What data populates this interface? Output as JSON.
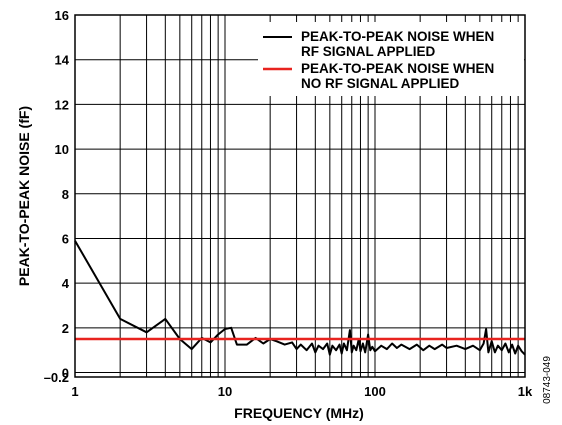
{
  "chart_data": {
    "type": "line",
    "xlabel": "FREQUENCY (MHz)",
    "ylabel": "PEAK-TO-PEAK NOISE (fF)",
    "x_scale": "log",
    "xlim": [
      1,
      1000
    ],
    "ylim": [
      -0.2,
      16
    ],
    "x_ticks": [
      {
        "value": 1,
        "label": "1"
      },
      {
        "value": 10,
        "label": "10"
      },
      {
        "value": 100,
        "label": "100"
      },
      {
        "value": 1000,
        "label": "1k"
      }
    ],
    "y_ticks": [
      {
        "value": 16,
        "label": "16"
      },
      {
        "value": 14,
        "label": "14"
      },
      {
        "value": 12,
        "label": "12"
      },
      {
        "value": 10,
        "label": "10"
      },
      {
        "value": 8,
        "label": "8"
      },
      {
        "value": 6,
        "label": "6"
      },
      {
        "value": 4,
        "label": "4"
      },
      {
        "value": 2,
        "label": "2"
      },
      {
        "value": 0,
        "label": "0"
      },
      {
        "value": -0.2,
        "label": "–0.2"
      }
    ],
    "grid": true,
    "legend_position": "top-right",
    "series": [
      {
        "name": "PEAK-TO-PEAK NOISE WHEN RF SIGNAL APPLIED",
        "legend_lines": [
          "PEAK-TO-PEAK NOISE WHEN",
          "RF SIGNAL APPLIED"
        ],
        "color": "#000000",
        "points": [
          [
            1,
            5.9
          ],
          [
            2,
            2.4
          ],
          [
            3,
            1.8
          ],
          [
            4,
            2.4
          ],
          [
            5,
            1.5
          ],
          [
            6,
            1.05
          ],
          [
            7,
            1.55
          ],
          [
            8,
            1.35
          ],
          [
            9,
            1.7
          ],
          [
            10,
            1.95
          ],
          [
            11,
            2.0
          ],
          [
            12,
            1.25
          ],
          [
            14,
            1.25
          ],
          [
            16,
            1.55
          ],
          [
            18,
            1.3
          ],
          [
            20,
            1.5
          ],
          [
            22,
            1.4
          ],
          [
            25,
            1.25
          ],
          [
            28,
            1.35
          ],
          [
            30,
            1.05
          ],
          [
            32,
            1.25
          ],
          [
            35,
            1.0
          ],
          [
            38,
            1.3
          ],
          [
            40,
            0.9
          ],
          [
            42,
            1.2
          ],
          [
            45,
            1.05
          ],
          [
            48,
            1.3
          ],
          [
            50,
            0.8
          ],
          [
            52,
            1.2
          ],
          [
            55,
            1.0
          ],
          [
            58,
            1.25
          ],
          [
            60,
            0.85
          ],
          [
            62,
            1.3
          ],
          [
            65,
            1.0
          ],
          [
            68,
            1.9
          ],
          [
            70,
            0.9
          ],
          [
            72,
            1.2
          ],
          [
            75,
            1.0
          ],
          [
            78,
            1.5
          ],
          [
            80,
            0.95
          ],
          [
            83,
            1.3
          ],
          [
            86,
            0.9
          ],
          [
            90,
            1.7
          ],
          [
            93,
            1.0
          ],
          [
            96,
            1.15
          ],
          [
            100,
            0.95
          ],
          [
            110,
            1.2
          ],
          [
            120,
            1.05
          ],
          [
            130,
            1.3
          ],
          [
            140,
            1.1
          ],
          [
            150,
            1.25
          ],
          [
            170,
            1.05
          ],
          [
            190,
            1.25
          ],
          [
            210,
            1.0
          ],
          [
            230,
            1.2
          ],
          [
            250,
            1.05
          ],
          [
            280,
            1.25
          ],
          [
            300,
            1.1
          ],
          [
            350,
            1.2
          ],
          [
            400,
            1.05
          ],
          [
            450,
            1.2
          ],
          [
            500,
            1.0
          ],
          [
            530,
            1.3
          ],
          [
            550,
            1.95
          ],
          [
            570,
            0.9
          ],
          [
            600,
            1.4
          ],
          [
            630,
            0.9
          ],
          [
            660,
            1.2
          ],
          [
            700,
            1.0
          ],
          [
            740,
            1.3
          ],
          [
            780,
            0.9
          ],
          [
            820,
            1.25
          ],
          [
            860,
            0.85
          ],
          [
            900,
            1.2
          ],
          [
            950,
            0.95
          ],
          [
            1000,
            0.8
          ]
        ]
      },
      {
        "name": "PEAK-TO-PEAK NOISE WHEN NO RF SIGNAL APPLIED",
        "legend_lines": [
          "PEAK-TO-PEAK NOISE WHEN",
          "NO RF SIGNAL APPLIED"
        ],
        "color": "#e8231f",
        "points": [
          [
            1,
            1.5
          ],
          [
            1000,
            1.5
          ]
        ]
      }
    ]
  },
  "figure_id": "08743-049"
}
